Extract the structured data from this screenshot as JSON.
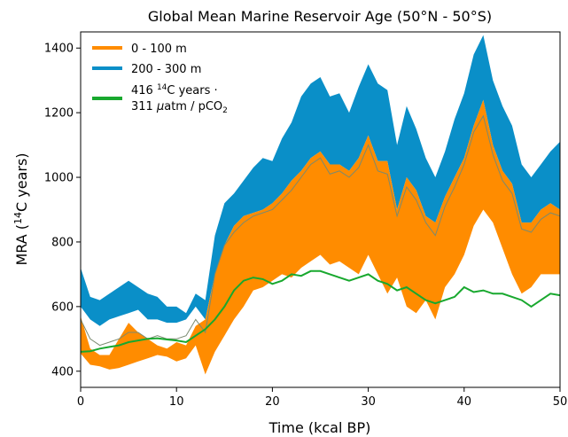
{
  "chart_data": {
    "type": "area",
    "title": "Global Mean Marine Reservoir Age (50°N - 50°S)",
    "xlabel": "Time (kcal BP)",
    "ylabel": {
      "pre": "MRA (",
      "sup": "14",
      "post": "C years)"
    },
    "xlim": [
      0,
      50
    ],
    "ylim": [
      350,
      1450
    ],
    "xticks": [
      0,
      10,
      20,
      30,
      40,
      50
    ],
    "yticks": [
      400,
      600,
      800,
      1000,
      1200,
      1400
    ],
    "grid": false,
    "legend_position": "top-left",
    "colors": {
      "shallow": "#ff8c00",
      "deep": "#0a8fc8",
      "reference": "#18a82e",
      "mean": "#7a8a70"
    },
    "series": [
      {
        "name": "0 - 100 m",
        "kind": "band",
        "x": [
          0,
          1,
          2,
          3,
          4,
          5,
          6,
          7,
          8,
          9,
          10,
          11,
          12,
          13,
          14,
          15,
          16,
          17,
          18,
          19,
          20,
          21,
          22,
          23,
          24,
          25,
          26,
          27,
          28,
          29,
          30,
          31,
          32,
          33,
          34,
          35,
          36,
          37,
          38,
          39,
          40,
          41,
          42,
          43,
          44,
          45,
          46,
          47,
          48,
          49,
          50
        ],
        "lower": [
          455,
          420,
          415,
          405,
          410,
          420,
          430,
          440,
          450,
          445,
          430,
          440,
          480,
          390,
          460,
          510,
          560,
          600,
          650,
          660,
          680,
          700,
          690,
          720,
          740,
          760,
          730,
          740,
          720,
          700,
          760,
          700,
          640,
          690,
          600,
          580,
          620,
          560,
          660,
          700,
          760,
          850,
          900,
          860,
          780,
          700,
          640,
          660,
          700,
          700,
          700
        ],
        "upper": [
          570,
          470,
          450,
          450,
          500,
          550,
          520,
          500,
          480,
          470,
          490,
          480,
          540,
          560,
          700,
          790,
          850,
          880,
          890,
          900,
          920,
          950,
          990,
          1020,
          1060,
          1080,
          1040,
          1040,
          1020,
          1060,
          1130,
          1050,
          1050,
          900,
          1000,
          960,
          880,
          860,
          940,
          1000,
          1060,
          1160,
          1240,
          1100,
          1020,
          980,
          860,
          860,
          900,
          920,
          900
        ]
      },
      {
        "name": "200 - 300 m",
        "kind": "band",
        "x": [
          0,
          1,
          2,
          3,
          4,
          5,
          6,
          7,
          8,
          9,
          10,
          11,
          12,
          13,
          14,
          15,
          16,
          17,
          18,
          19,
          20,
          21,
          22,
          23,
          24,
          25,
          26,
          27,
          28,
          29,
          30,
          31,
          32,
          33,
          34,
          35,
          36,
          37,
          38,
          39,
          40,
          41,
          42,
          43,
          44,
          45,
          46,
          47,
          48,
          49,
          50
        ],
        "lower": [
          600,
          560,
          540,
          560,
          570,
          580,
          590,
          560,
          560,
          550,
          550,
          560,
          600,
          560,
          700,
          790,
          850,
          880,
          890,
          900,
          920,
          950,
          990,
          1020,
          1060,
          1080,
          1040,
          1040,
          1020,
          1060,
          1130,
          1050,
          1050,
          900,
          1000,
          960,
          880,
          860,
          940,
          1000,
          1060,
          1160,
          1240,
          1100,
          1020,
          980,
          860,
          860,
          900,
          920,
          900
        ],
        "upper": [
          720,
          630,
          620,
          640,
          660,
          680,
          660,
          640,
          630,
          600,
          600,
          580,
          640,
          620,
          820,
          920,
          950,
          990,
          1030,
          1060,
          1050,
          1120,
          1170,
          1250,
          1290,
          1310,
          1250,
          1260,
          1200,
          1280,
          1350,
          1290,
          1270,
          1100,
          1220,
          1150,
          1060,
          1000,
          1080,
          1180,
          1260,
          1380,
          1440,
          1300,
          1220,
          1160,
          1040,
          1000,
          1040,
          1080,
          1110
        ]
      },
      {
        "name": "416 14C years · 311 µatm / pCO2",
        "kind": "line",
        "label_line1": {
          "pre": "416 ",
          "sup": "14",
          "post": "C years ·"
        },
        "label_line2": {
          "pre": "311 ",
          "mu": "μ",
          "mid": "atm / pCO",
          "sub": "2"
        },
        "x": [
          0,
          1,
          2,
          3,
          4,
          5,
          6,
          7,
          8,
          9,
          10,
          11,
          12,
          13,
          14,
          15,
          16,
          17,
          18,
          19,
          20,
          21,
          22,
          23,
          24,
          25,
          26,
          27,
          28,
          29,
          30,
          31,
          32,
          33,
          34,
          35,
          36,
          37,
          38,
          39,
          40,
          41,
          42,
          43,
          44,
          45,
          46,
          47,
          48,
          49,
          50
        ],
        "y": [
          460,
          462,
          470,
          475,
          480,
          490,
          495,
          500,
          502,
          498,
          495,
          490,
          510,
          530,
          560,
          600,
          650,
          680,
          690,
          685,
          670,
          680,
          700,
          695,
          710,
          710,
          700,
          690,
          680,
          690,
          700,
          680,
          670,
          650,
          660,
          640,
          620,
          610,
          620,
          630,
          660,
          645,
          650,
          640,
          640,
          630,
          620,
          600,
          620,
          640,
          635
        ]
      },
      {
        "name": "",
        "kind": "mean",
        "x": [
          0,
          1,
          2,
          3,
          4,
          5,
          6,
          7,
          8,
          9,
          10,
          11,
          12,
          13,
          14,
          15,
          16,
          17,
          18,
          19,
          20,
          21,
          22,
          23,
          24,
          25,
          26,
          27,
          28,
          29,
          30,
          31,
          32,
          33,
          34,
          35,
          36,
          37,
          38,
          39,
          40,
          41,
          42,
          43,
          44,
          45,
          46,
          47,
          48,
          49,
          50
        ],
        "y": [
          560,
          500,
          480,
          490,
          500,
          520,
          520,
          500,
          510,
          500,
          500,
          510,
          560,
          520,
          700,
          790,
          830,
          860,
          880,
          890,
          900,
          930,
          960,
          1000,
          1040,
          1060,
          1010,
          1020,
          1000,
          1030,
          1100,
          1020,
          1010,
          880,
          970,
          930,
          860,
          820,
          910,
          970,
          1040,
          1140,
          1190,
          1070,
          990,
          950,
          840,
          830,
          870,
          890,
          880
        ]
      }
    ]
  }
}
